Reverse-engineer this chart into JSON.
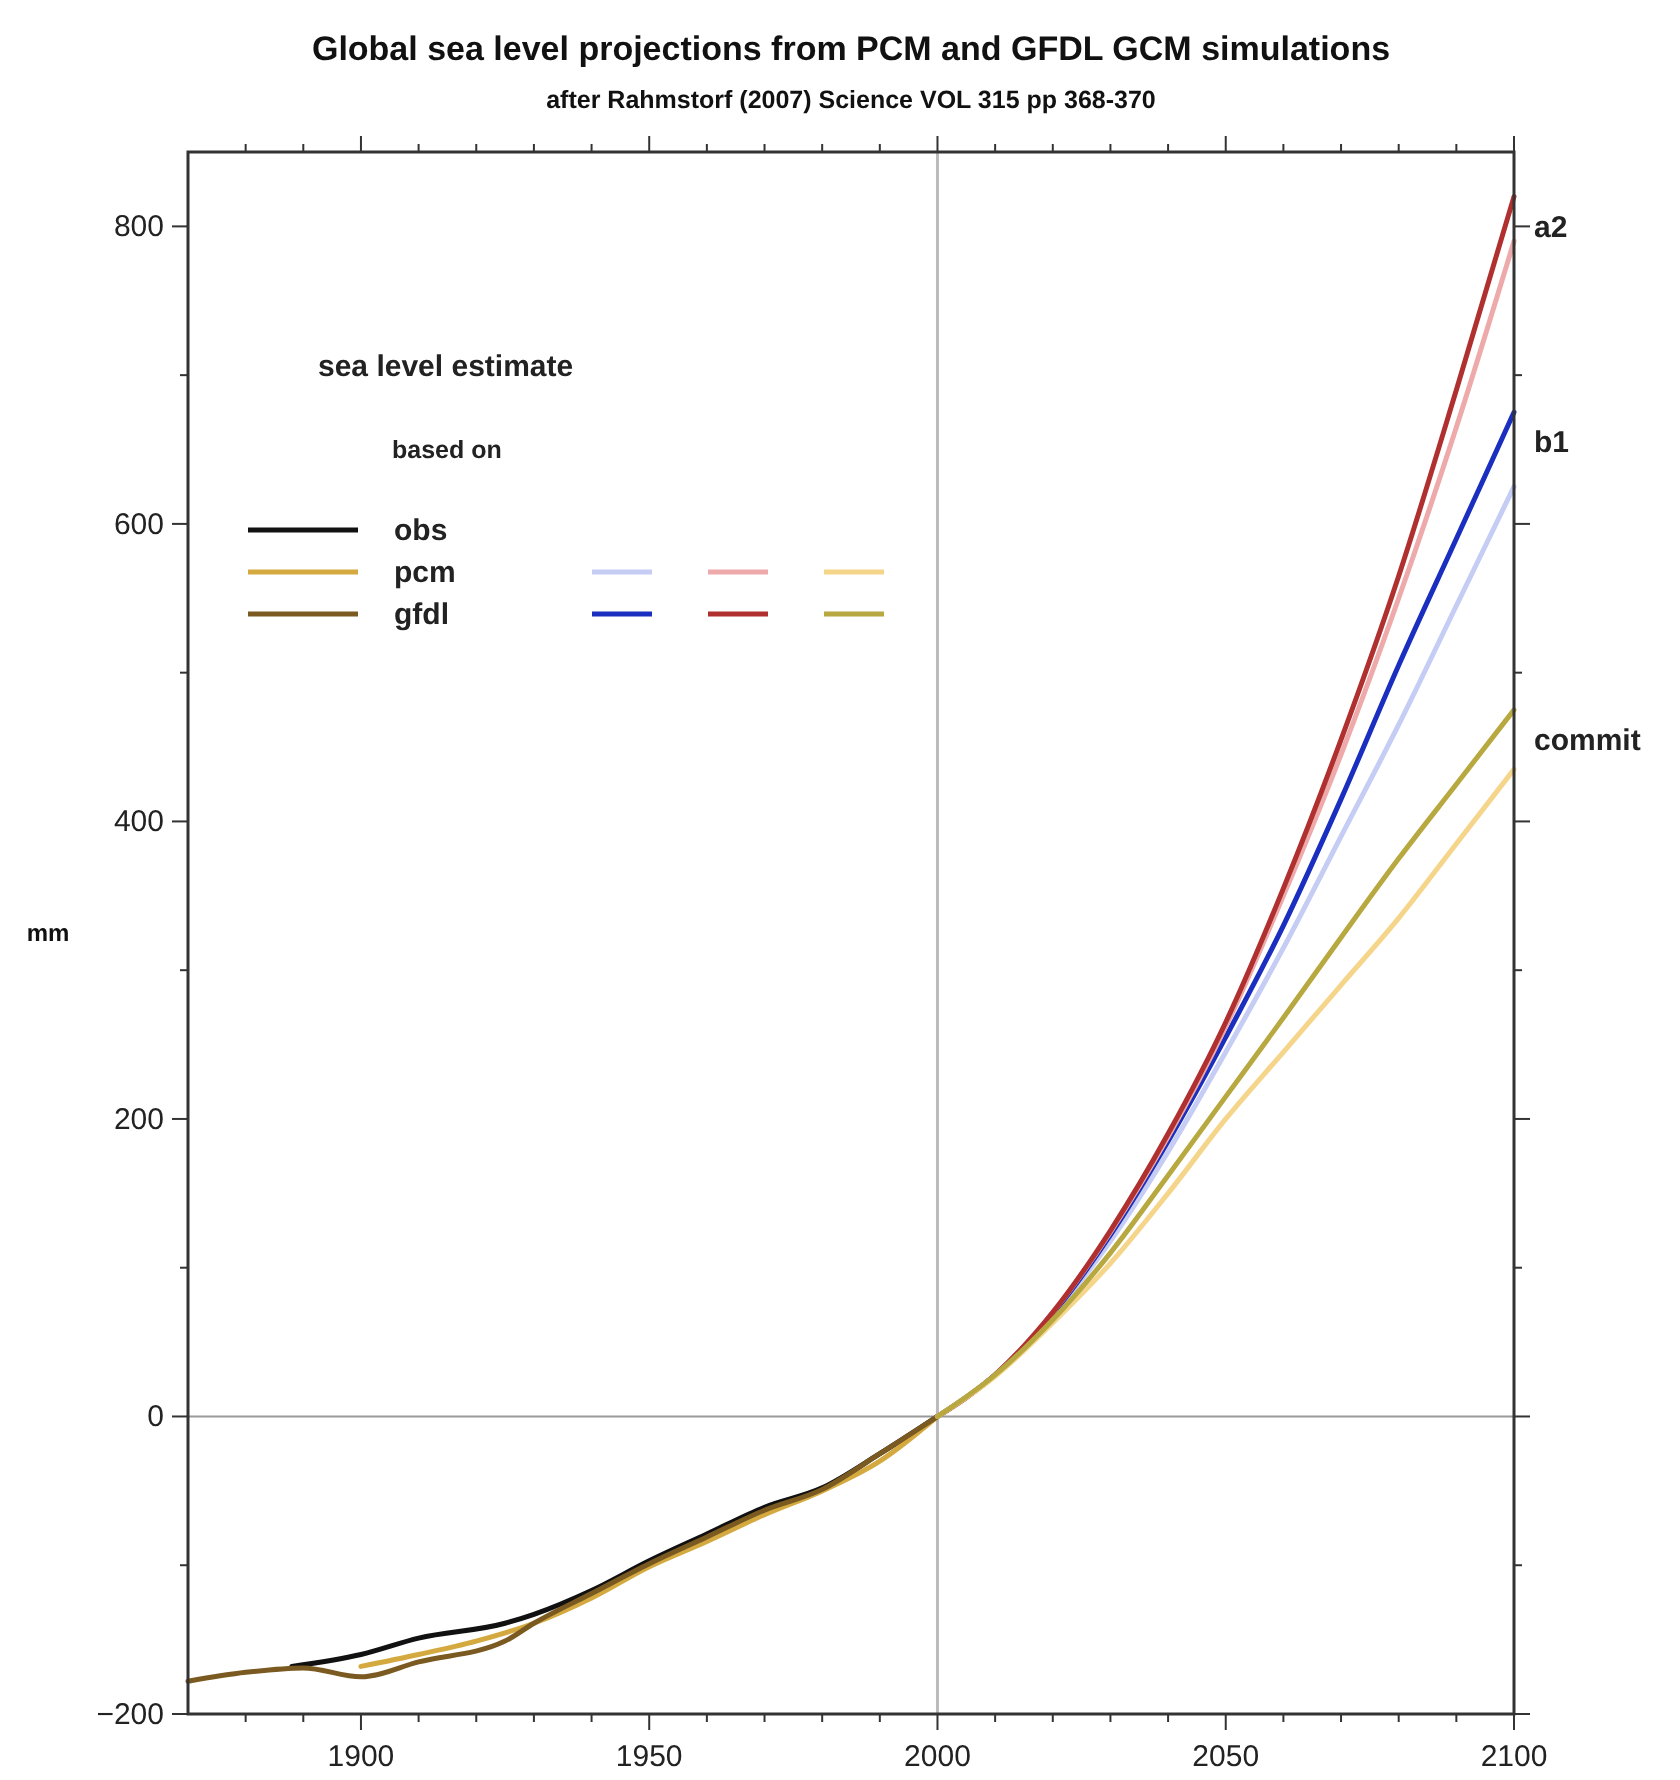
{
  "chart_data": {
    "type": "line",
    "title": "Global sea level projections from PCM and GFDL GCM simulations",
    "subtitle": "after Rahmstorf (2007) Science VOL 315 pp 368-370",
    "ylabel": "mm",
    "legend_title": "sea level estimate",
    "xlim": [
      1870,
      2100
    ],
    "ylim": [
      -200,
      850
    ],
    "xticks": [
      {
        "value": 1880,
        "label": null
      },
      {
        "value": 1890,
        "label": null
      },
      1900,
      {
        "value": 1910,
        "label": null
      },
      {
        "value": 1920,
        "label": null
      },
      {
        "value": 1930,
        "label": null
      },
      {
        "value": 1940,
        "label": null
      },
      1950,
      {
        "value": 1960,
        "label": null
      },
      {
        "value": 1970,
        "label": null
      },
      {
        "value": 1980,
        "label": null
      },
      {
        "value": 1990,
        "label": null
      },
      2000,
      {
        "value": 2010,
        "label": null
      },
      {
        "value": 2020,
        "label": null
      },
      {
        "value": 2030,
        "label": null
      },
      {
        "value": 2040,
        "label": null
      },
      2050,
      {
        "value": 2060,
        "label": null
      },
      {
        "value": 2070,
        "label": null
      },
      {
        "value": 2080,
        "label": null
      },
      {
        "value": 2090,
        "label": null
      },
      2100
    ],
    "yticks": [
      -200,
      {
        "value": -100,
        "label": null
      },
      0,
      {
        "value": 100,
        "label": null
      },
      200,
      {
        "value": 300,
        "label": null
      },
      400,
      {
        "value": 500,
        "label": null
      },
      600,
      {
        "value": 700,
        "label": null
      },
      800
    ],
    "grid": false,
    "legend": "top left",
    "marker": "none",
    "line_style": "solid",
    "ref_lines": [
      {
        "axis": "x",
        "value": 2000,
        "label": null,
        "color": "#bbbbbb"
      },
      {
        "axis": "y",
        "value": 0,
        "label": null,
        "color": "#999999"
      }
    ],
    "annotations": [
      "based on",
      "b1",
      "a2",
      "commit"
    ],
    "series": [
      {
        "name": "obs",
        "color": "#111111",
        "x": [
          1888,
          1900,
          1910,
          1925,
          1930,
          1940,
          1950,
          1960,
          1970,
          1980,
          1990,
          2000
        ],
        "values": [
          -168,
          -160,
          -149,
          -139,
          -133,
          -117,
          -97,
          -79,
          -61,
          -48,
          -25,
          0
        ]
      },
      {
        "name": "pcm",
        "color": "#d4aa40",
        "x": [
          1900,
          1910,
          1920,
          1930,
          1940,
          1950,
          1960,
          1970,
          1980,
          1990,
          2000
        ],
        "values": [
          -168,
          -160,
          -151,
          -139,
          -122,
          -101,
          -84,
          -66,
          -50,
          -30,
          0
        ]
      },
      {
        "name": "gfdl",
        "color": "#7a5a20",
        "x": [
          1870,
          1880,
          1890,
          1900,
          1910,
          1925,
          1930,
          1940,
          1950,
          1960,
          1970,
          1980,
          1990,
          2000
        ],
        "values": [
          -178,
          -172,
          -169,
          -175,
          -165,
          -151,
          -139,
          -119,
          -99,
          -81,
          -63,
          -49,
          -25,
          0
        ]
      },
      {
        "color": "#c5cdf5",
        "x": [
          2000,
          2010,
          2020,
          2030,
          2040,
          2050,
          2060,
          2070,
          2080,
          2090,
          2100
        ],
        "values": [
          0,
          28,
          68,
          118,
          178,
          245,
          315,
          390,
          465,
          545,
          625
        ]
      },
      {
        "color": "#1a2fbf",
        "x": [
          2000,
          2010,
          2020,
          2030,
          2040,
          2050,
          2060,
          2070,
          2080,
          2090,
          2100
        ],
        "values": [
          0,
          28,
          69,
          122,
          185,
          255,
          330,
          415,
          505,
          590,
          675
        ]
      },
      {
        "color": "#eeaaaa",
        "x": [
          2000,
          2010,
          2020,
          2030,
          2040,
          2050,
          2060,
          2070,
          2080,
          2090,
          2100
        ],
        "values": [
          0,
          28,
          70,
          124,
          188,
          262,
          350,
          445,
          550,
          665,
          790
        ]
      },
      {
        "color": "#b03030",
        "x": [
          2000,
          2010,
          2020,
          2030,
          2040,
          2050,
          2060,
          2070,
          2080,
          2090,
          2100
        ],
        "values": [
          0,
          28,
          70,
          125,
          190,
          265,
          355,
          455,
          565,
          690,
          820
        ]
      },
      {
        "color": "#f5d58a",
        "x": [
          2000,
          2010,
          2020,
          2030,
          2040,
          2050,
          2060,
          2070,
          2080,
          2090,
          2100
        ],
        "values": [
          0,
          27,
          63,
          103,
          150,
          200,
          245,
          290,
          335,
          385,
          435
        ]
      },
      {
        "color": "#b8a840",
        "x": [
          2000,
          2010,
          2020,
          2030,
          2040,
          2050,
          2060,
          2070,
          2080,
          2090,
          2100
        ],
        "values": [
          0,
          28,
          65,
          110,
          162,
          215,
          268,
          322,
          375,
          425,
          475
        ]
      }
    ]
  }
}
